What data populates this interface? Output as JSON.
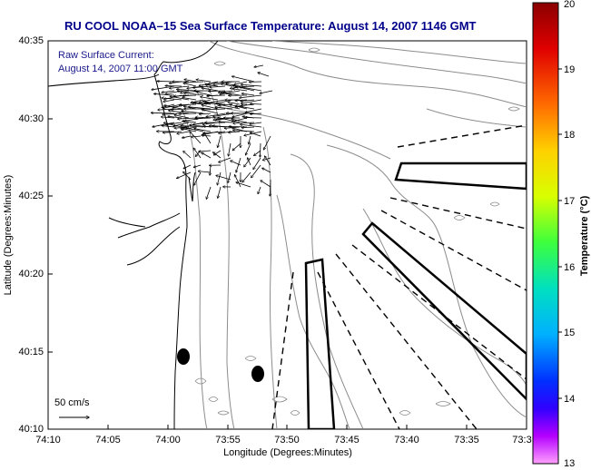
{
  "title": "RU COOL  NOAA–15  Sea Surface Temperature:  August 14, 2007 1146 GMT",
  "current_label": "Raw Surface Current:",
  "current_time": "August 14, 2007 11:00 GMT",
  "scale_label": "50 cm/s",
  "xlabel": "Longitude (Degrees:Minutes)",
  "ylabel": "Latitude (Degrees:Minutes)",
  "x_ticks": [
    "74:10",
    "74:05",
    "74:00",
    "73:55",
    "73:50",
    "73:45",
    "73:40",
    "73:35",
    "73:3"
  ],
  "y_ticks": [
    "40:35",
    "40:30",
    "40:25",
    "40:20",
    "40:15",
    "40:10"
  ],
  "colorbar": {
    "label": "Temperature (°C)",
    "ticks": [
      "20",
      "19",
      "18",
      "17",
      "16",
      "15",
      "14",
      "13"
    ],
    "min": 13,
    "max": 20
  },
  "colors": {
    "title": "#00008b",
    "label": "#1a1a8c",
    "coast": "#000000",
    "bathymetry": "#888888"
  }
}
